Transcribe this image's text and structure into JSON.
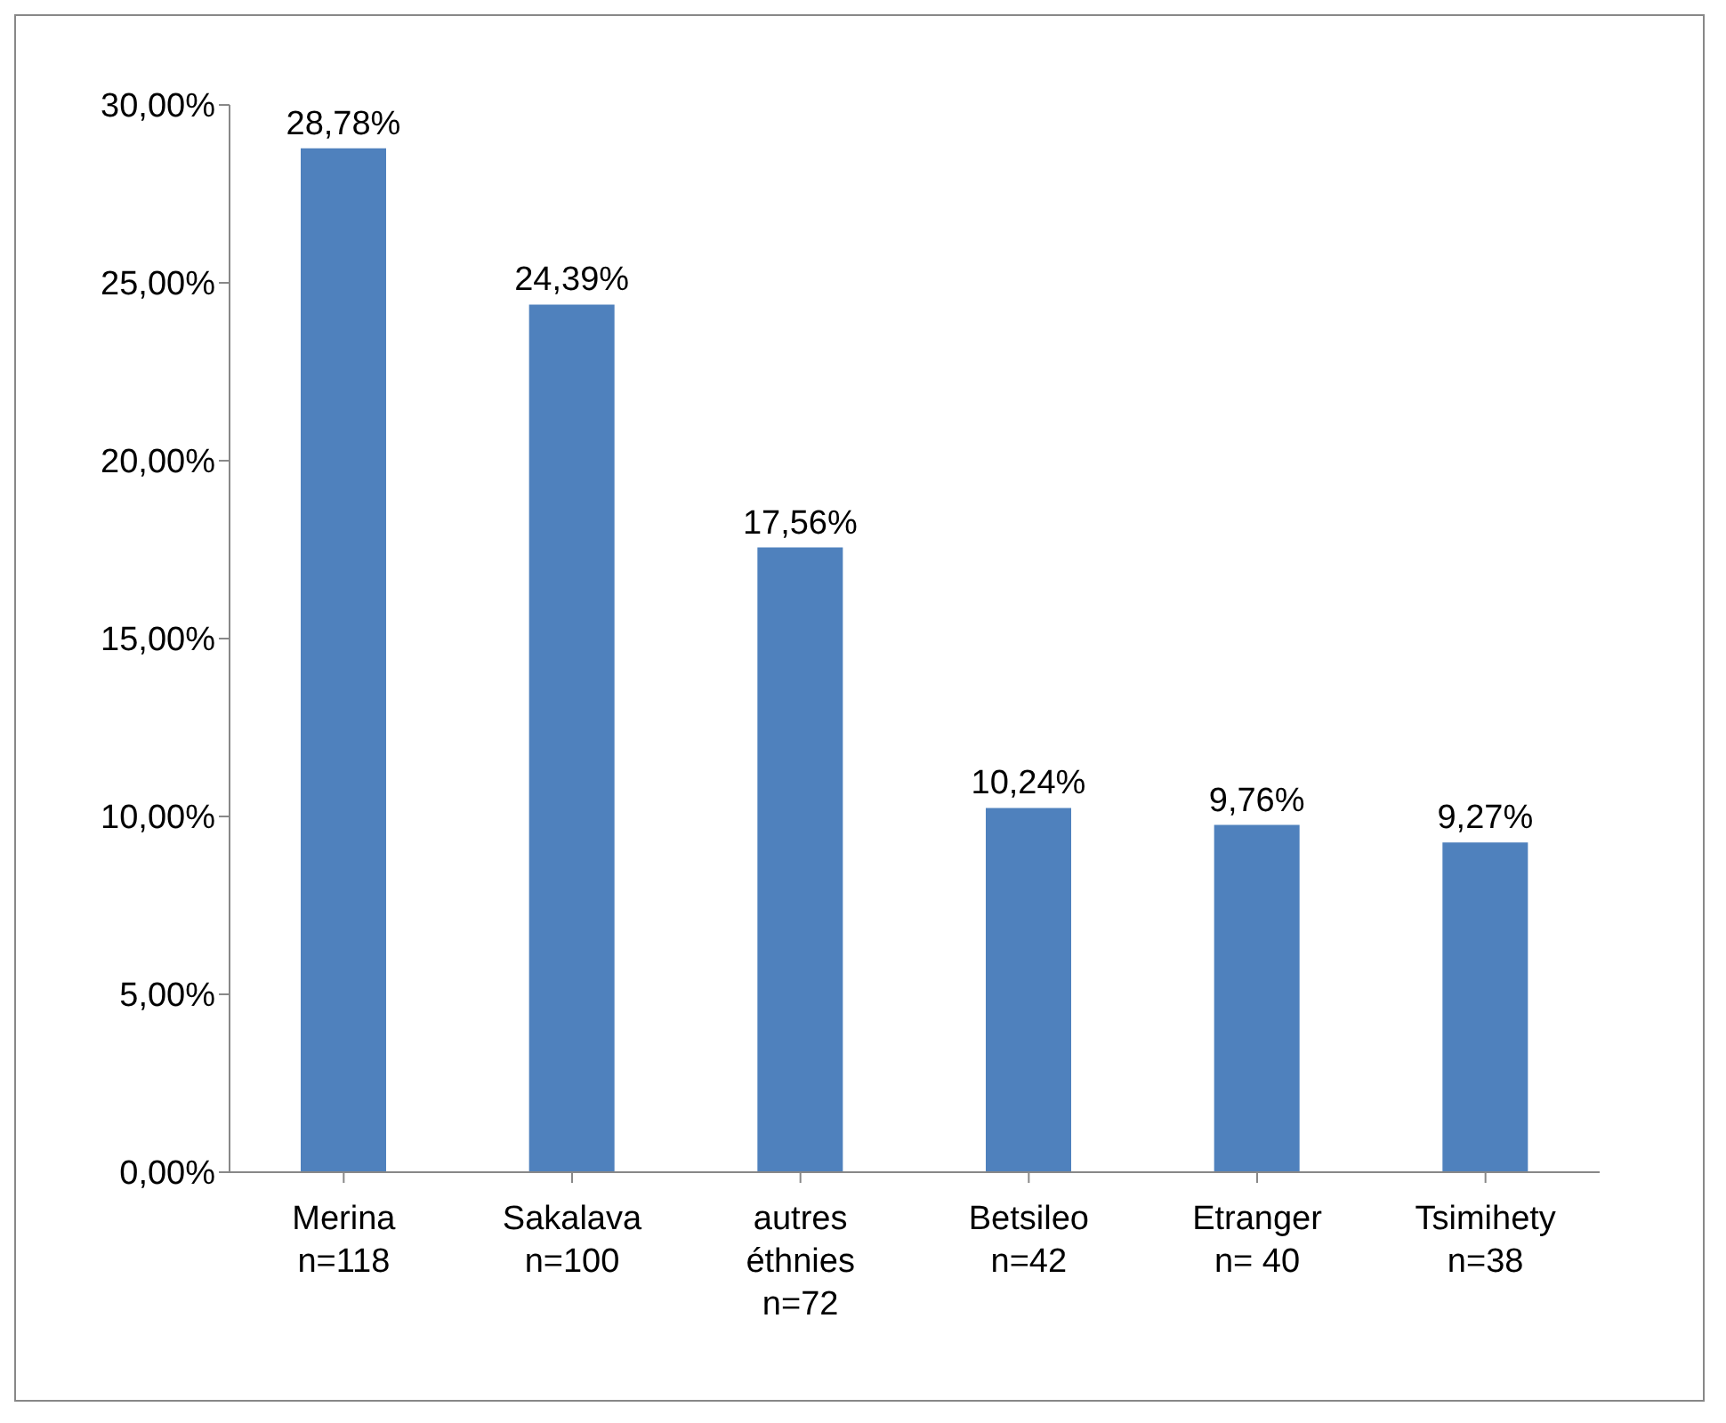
{
  "chart_data": {
    "type": "bar",
    "categories": [
      "Merina\nn=118",
      "Sakalava\nn=100",
      "autres\néthnies\nn=72",
      "Betsileo\nn=42",
      "Etranger\nn= 40",
      "Tsimihety\nn=38"
    ],
    "values": [
      28.78,
      24.39,
      17.56,
      10.24,
      9.76,
      9.27
    ],
    "value_labels": [
      "28,78%",
      "24,39%",
      "17,56%",
      "10,24%",
      "9,76%",
      "9,27%"
    ],
    "color": "#4f81bd",
    "ylim": [
      0,
      30
    ],
    "yticks": [
      {
        "value": 0,
        "label": "0,00%"
      },
      {
        "value": 5,
        "label": "5,00%"
      },
      {
        "value": 10,
        "label": "10,00%"
      },
      {
        "value": 15,
        "label": "15,00%"
      },
      {
        "value": 20,
        "label": "20,00%"
      },
      {
        "value": 25,
        "label": "25,00%"
      },
      {
        "value": 30,
        "label": "30,00%"
      }
    ]
  }
}
